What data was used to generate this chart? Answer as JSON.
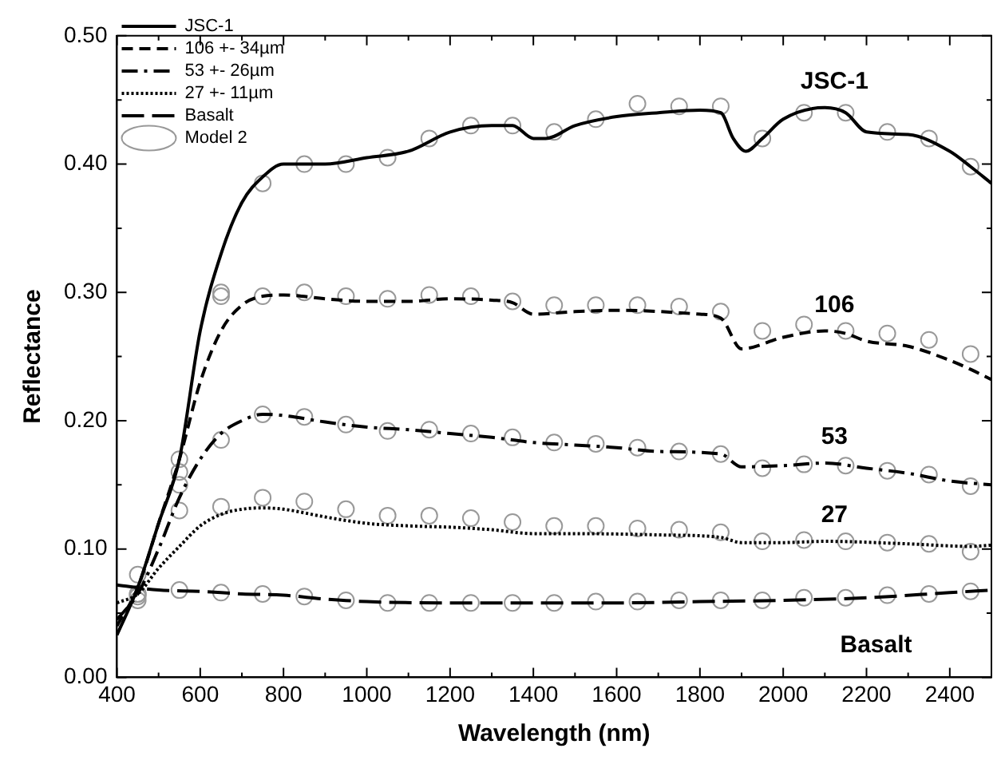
{
  "chart_data": {
    "type": "line",
    "xlabel": "Wavelength (nm)",
    "ylabel": "Reflectance",
    "xlim": [
      400,
      2500
    ],
    "ylim": [
      0,
      0.5
    ],
    "xticks": [
      400,
      {
        "value": 500,
        "label": null
      },
      600,
      {
        "value": 700,
        "label": null
      },
      800,
      {
        "value": 900,
        "label": null
      },
      1000,
      {
        "value": 1100,
        "label": null
      },
      1200,
      {
        "value": 1300,
        "label": null
      },
      1400,
      {
        "value": 1500,
        "label": null
      },
      1600,
      {
        "value": 1700,
        "label": null
      },
      1800,
      {
        "value": 1900,
        "label": null
      },
      2000,
      {
        "value": 2100,
        "label": null
      },
      2200,
      {
        "value": 2300,
        "label": null
      },
      2400
    ],
    "yticks": [
      {
        "value": 0,
        "label": "0.00"
      },
      {
        "value": 0.05,
        "label": null
      },
      {
        "value": 0.1,
        "label": "0.10"
      },
      {
        "value": 0.15,
        "label": null
      },
      {
        "value": 0.2,
        "label": "0.20"
      },
      {
        "value": 0.25,
        "label": null
      },
      {
        "value": 0.3,
        "label": "0.30"
      },
      {
        "value": 0.35,
        "label": null
      },
      {
        "value": 0.4,
        "label": "0.40"
      },
      {
        "value": 0.45,
        "label": null
      },
      {
        "value": 0.5,
        "label": "0.50"
      }
    ],
    "grid": false,
    "legend": "top left",
    "marker": "none",
    "series": [
      {
        "name": "JSC-1",
        "color": "#000000",
        "line_style": "solid",
        "x": [
          400,
          450,
          500,
          550,
          600,
          650,
          700,
          750,
          800,
          900,
          1000,
          1100,
          1200,
          1300,
          1350,
          1400,
          1430,
          1500,
          1600,
          1700,
          1800,
          1850,
          1880,
          1910,
          1950,
          2000,
          2100,
          2150,
          2200,
          2300,
          2400,
          2450,
          2500
        ],
        "values": [
          0.033,
          0.07,
          0.12,
          0.17,
          0.27,
          0.33,
          0.37,
          0.39,
          0.4,
          0.4,
          0.405,
          0.41,
          0.425,
          0.43,
          0.43,
          0.42,
          0.42,
          0.43,
          0.437,
          0.44,
          0.442,
          0.44,
          0.42,
          0.41,
          0.42,
          0.435,
          0.444,
          0.44,
          0.425,
          0.423,
          0.41,
          0.398,
          0.385
        ]
      },
      {
        "name": "106 +- 34µm",
        "color": "#000000",
        "line_style": "dashed",
        "x": [
          400,
          450,
          500,
          550,
          600,
          650,
          700,
          750,
          800,
          900,
          1000,
          1100,
          1200,
          1300,
          1350,
          1400,
          1500,
          1600,
          1800,
          1850,
          1900,
          2000,
          2100,
          2150,
          2200,
          2300,
          2400,
          2450,
          2500
        ],
        "values": [
          0.04,
          0.07,
          0.12,
          0.17,
          0.23,
          0.27,
          0.29,
          0.297,
          0.298,
          0.295,
          0.293,
          0.293,
          0.295,
          0.294,
          0.292,
          0.283,
          0.285,
          0.286,
          0.283,
          0.28,
          0.256,
          0.265,
          0.27,
          0.268,
          0.262,
          0.258,
          0.247,
          0.24,
          0.232
        ]
      },
      {
        "name": "53 +- 26µm",
        "color": "#000000",
        "line_style": "dashdot",
        "x": [
          400,
          450,
          500,
          550,
          600,
          650,
          700,
          750,
          800,
          900,
          1000,
          1100,
          1200,
          1300,
          1400,
          1500,
          1600,
          1700,
          1850,
          1900,
          2000,
          2100,
          2200,
          2300,
          2400,
          2500
        ],
        "values": [
          0.045,
          0.065,
          0.1,
          0.14,
          0.17,
          0.19,
          0.2,
          0.205,
          0.204,
          0.199,
          0.195,
          0.193,
          0.19,
          0.187,
          0.183,
          0.181,
          0.179,
          0.176,
          0.174,
          0.164,
          0.165,
          0.167,
          0.163,
          0.159,
          0.153,
          0.15
        ]
      },
      {
        "name": "27 +- 11µm",
        "color": "#000000",
        "line_style": "dotted",
        "x": [
          400,
          450,
          500,
          550,
          600,
          650,
          700,
          750,
          800,
          900,
          1000,
          1100,
          1200,
          1300,
          1400,
          1500,
          1700,
          1850,
          1900,
          2000,
          2100,
          2300,
          2450,
          2500
        ],
        "values": [
          0.058,
          0.065,
          0.085,
          0.102,
          0.118,
          0.127,
          0.131,
          0.132,
          0.131,
          0.125,
          0.12,
          0.118,
          0.117,
          0.115,
          0.112,
          0.112,
          0.111,
          0.109,
          0.105,
          0.105,
          0.106,
          0.104,
          0.102,
          0.103
        ]
      },
      {
        "name": "Basalt",
        "color": "#000000",
        "line_style": "longdash",
        "x": [
          400,
          500,
          600,
          700,
          800,
          900,
          1000,
          1200,
          1400,
          1600,
          1800,
          2000,
          2200,
          2400,
          2500
        ],
        "values": [
          0.072,
          0.068,
          0.067,
          0.065,
          0.064,
          0.061,
          0.059,
          0.058,
          0.058,
          0.058,
          0.059,
          0.06,
          0.062,
          0.066,
          0.068
        ]
      },
      {
        "name": "Model 2",
        "type": "scatter",
        "marker": "circle",
        "color": "#999999",
        "x": [
          450,
          550,
          650,
          750,
          850,
          950,
          1050,
          1150,
          1250,
          1350,
          1450,
          1550,
          1650,
          1750,
          1850,
          1950,
          2050,
          2150,
          2250,
          2350,
          2450,
          450,
          550,
          650,
          750,
          850,
          950,
          1050,
          1150,
          1250,
          1350,
          1450,
          1550,
          1650,
          1750,
          1850,
          1950,
          2050,
          2150,
          2250,
          2350,
          2450,
          450,
          550,
          650,
          750,
          850,
          950,
          1050,
          1150,
          1250,
          1350,
          1450,
          1550,
          1650,
          1750,
          1850,
          1950,
          2050,
          2150,
          2250,
          2350,
          2450,
          450,
          550,
          650,
          750,
          850,
          950,
          1050,
          1150,
          1250,
          1350,
          1450,
          1550,
          1650,
          1750,
          1850,
          1950,
          2050,
          2150,
          2250,
          2350,
          2450,
          450,
          550,
          650,
          750,
          850,
          950,
          1050,
          1150,
          1250,
          1350,
          1450,
          1550,
          1650,
          1750,
          1850,
          1950,
          2050,
          2150,
          2250,
          2350,
          2450
        ],
        "values": [
          0.06,
          0.17,
          0.3,
          0.385,
          0.4,
          0.4,
          0.405,
          0.42,
          0.43,
          0.43,
          0.425,
          0.435,
          0.447,
          0.445,
          0.445,
          0.42,
          0.44,
          0.44,
          0.425,
          0.42,
          0.398,
          0.065,
          0.15,
          0.297,
          0.297,
          0.3,
          0.297,
          0.295,
          0.298,
          0.297,
          0.293,
          0.29,
          0.29,
          0.29,
          0.289,
          0.285,
          0.27,
          0.275,
          0.27,
          0.268,
          0.263,
          0.252,
          0.065,
          0.16,
          0.185,
          0.205,
          0.203,
          0.197,
          0.192,
          0.193,
          0.19,
          0.187,
          0.183,
          0.182,
          0.179,
          0.176,
          0.174,
          0.163,
          0.166,
          0.165,
          0.161,
          0.158,
          0.149,
          0.08,
          0.13,
          0.133,
          0.14,
          0.137,
          0.131,
          0.126,
          0.126,
          0.124,
          0.121,
          0.118,
          0.118,
          0.116,
          0.115,
          0.113,
          0.106,
          0.107,
          0.106,
          0.105,
          0.104,
          0.098,
          0.063,
          0.068,
          0.066,
          0.065,
          0.063,
          0.06,
          0.058,
          0.058,
          0.058,
          0.058,
          0.058,
          0.059,
          0.059,
          0.06,
          0.06,
          0.06,
          0.062,
          0.062,
          0.064,
          0.065,
          0.067
        ]
      }
    ],
    "annotations": [
      "JSC-1",
      "106",
      "53",
      "27",
      "Basalt"
    ]
  }
}
